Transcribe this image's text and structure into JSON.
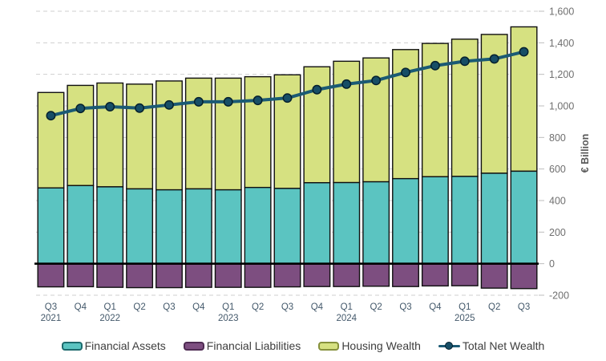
{
  "chart_data": {
    "type": "combo-stacked-bar-line",
    "title": "",
    "ylabel": "€ Billion",
    "ylim": [
      -200,
      1600
    ],
    "ytick_interval": 200,
    "grid": "dashed-horizontal",
    "legend_position": "bottom",
    "categories": [
      "Q3",
      "Q4",
      "Q1",
      "Q2",
      "Q3",
      "Q4",
      "Q1",
      "Q2",
      "Q3",
      "Q4",
      "Q1",
      "Q2",
      "Q3",
      "Q4",
      "Q1",
      "Q2",
      "Q3"
    ],
    "year_markers": {
      "0": "2021",
      "2": "2022",
      "6": "2023",
      "10": "2024",
      "14": "2025"
    },
    "bar_series": [
      {
        "name": "Financial Assets",
        "color": "#5bc4c1",
        "legend_border": "#1d6a6d",
        "values": [
          480,
          495,
          487,
          474,
          468,
          474,
          468,
          483,
          477,
          513,
          514,
          519,
          539,
          551,
          553,
          573,
          586
        ]
      },
      {
        "name": "Financial Liabilities",
        "color": "#7d4e80",
        "legend_border": "#4e2b52",
        "values": [
          -147,
          -146,
          -150,
          -152,
          -152,
          -150,
          -150,
          -150,
          -147,
          -145,
          -145,
          -143,
          -145,
          -141,
          -140,
          -155,
          -158
        ]
      },
      {
        "name": "Housing Wealth",
        "color": "#d6e181",
        "legend_border": "#86913c",
        "values": [
          605,
          635,
          658,
          664,
          690,
          702,
          708,
          702,
          720,
          735,
          769,
          785,
          818,
          845,
          870,
          880,
          915
        ]
      }
    ],
    "line_series": {
      "name": "Total Net Wealth",
      "color": "#1b5a74",
      "marker_color": "#174e66",
      "values": [
        938,
        984,
        995,
        986,
        1006,
        1026,
        1026,
        1035,
        1050,
        1103,
        1138,
        1161,
        1212,
        1255,
        1283,
        1298,
        1343
      ]
    },
    "colors": {
      "bar_border": "#101010",
      "zero_line": "#000000",
      "gridline": "#cfcfcf",
      "axis_tick": "#bdbdbd",
      "y_tick_label": "#6f6f6f",
      "x_tick_label": "#44596b",
      "axis_title": "#595959",
      "legend_text": "#3d3d3d",
      "background": "#ffffff"
    }
  }
}
